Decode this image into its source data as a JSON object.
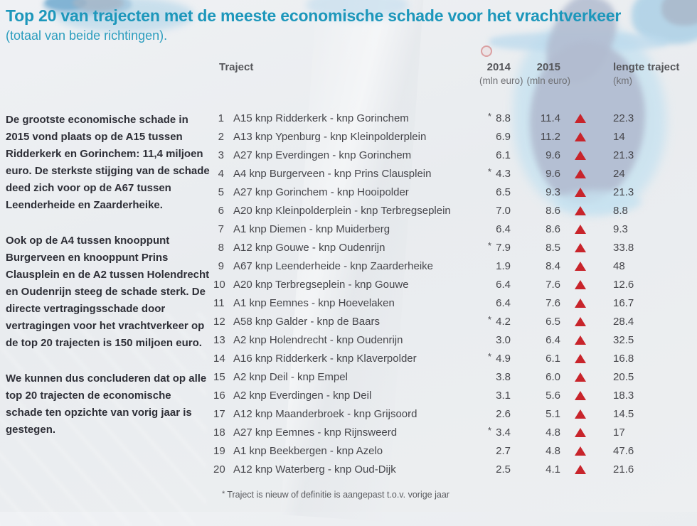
{
  "page": {
    "title": "Top 20 van trajecten met de meeste economische schade voor het vrachtverkeer",
    "subtitle": "(totaal van beide richtingen)."
  },
  "colors": {
    "title_accent": "#1d97bb",
    "body_text": "#2e2f37",
    "table_text": "#47474c",
    "trend_up": "#c8242b",
    "map_land": "#b2bcd0",
    "map_water": "#c7e2f0"
  },
  "sidebar": {
    "paragraphs": [
      "De grootste economische schade in 2015 vond plaats op de A15 tussen Ridderkerk en Gorinchem: 11,4 miljoen euro. De sterkste stijging van de schade deed zich voor op de A67 tussen Leenderheide en Zaarderheike.",
      "Ook op de A4 tussen knooppunt Burgerveen en knooppunt Prins Clausplein en de A2 tussen Holendrecht en Oudenrijn steeg de schade sterk. De directe vertragingsschade door vertragingen voor het vrachtverkeer op de top 20 trajecten is 150 miljoen euro.",
      "We kunnen dus concluderen dat op alle top 20 trajecten de economische schade ten opzichte van vorig jaar is gestegen."
    ]
  },
  "table": {
    "headers": {
      "traject": "Traject",
      "y2014": "2014",
      "y2014_unit": "(mln euro)",
      "y2015": "2015",
      "y2015_unit": "(mln euro)",
      "length": "lengte traject",
      "length_unit": "(km)"
    },
    "rows": [
      {
        "rank": "1",
        "traject": "A15 knp Ridderkerk - knp Gorinchem",
        "v2014": "8.8",
        "new_or_changed": true,
        "v2015": "11.4",
        "trend": "up",
        "length": "22.3"
      },
      {
        "rank": "2",
        "traject": "A13 knp Ypenburg - knp Kleinpolderplein",
        "v2014": "6.9",
        "new_or_changed": false,
        "v2015": "11.2",
        "trend": "up",
        "length": "14"
      },
      {
        "rank": "3",
        "traject": "A27 knp Everdingen - knp Gorinchem",
        "v2014": "6.1",
        "new_or_changed": false,
        "v2015": "9.6",
        "trend": "up",
        "length": "21.3"
      },
      {
        "rank": "4",
        "traject": "A4 knp Burgerveen - knp Prins Clausplein",
        "v2014": "4.3",
        "new_or_changed": true,
        "v2015": "9.6",
        "trend": "up",
        "length": "24"
      },
      {
        "rank": "5",
        "traject": "A27 knp Gorinchem - knp Hooipolder",
        "v2014": "6.5",
        "new_or_changed": false,
        "v2015": "9.3",
        "trend": "up",
        "length": "21.3"
      },
      {
        "rank": "6",
        "traject": "A20 knp Kleinpolderplein - knp Terbregseplein",
        "v2014": "7.0",
        "new_or_changed": false,
        "v2015": "8.6",
        "trend": "up",
        "length": "8.8"
      },
      {
        "rank": "7",
        "traject": "A1 knp Diemen - knp Muiderberg",
        "v2014": "6.4",
        "new_or_changed": false,
        "v2015": "8.6",
        "trend": "up",
        "length": "9.3"
      },
      {
        "rank": "8",
        "traject": "A12 knp Gouwe - knp Oudenrijn",
        "v2014": "7.9",
        "new_or_changed": true,
        "v2015": "8.5",
        "trend": "up",
        "length": "33.8"
      },
      {
        "rank": "9",
        "traject": "A67 knp Leenderheide - knp Zaarderheike",
        "v2014": "1.9",
        "new_or_changed": false,
        "v2015": "8.4",
        "trend": "up",
        "length": "48"
      },
      {
        "rank": "10",
        "traject": "A20 knp Terbregseplein - knp Gouwe",
        "v2014": "6.4",
        "new_or_changed": false,
        "v2015": "7.6",
        "trend": "up",
        "length": "12.6"
      },
      {
        "rank": "11",
        "traject": "A1 knp Eemnes - knp Hoevelaken",
        "v2014": "6.4",
        "new_or_changed": false,
        "v2015": "7.6",
        "trend": "up",
        "length": "16.7"
      },
      {
        "rank": "12",
        "traject": "A58 knp Galder - knp de Baars",
        "v2014": "4.2",
        "new_or_changed": true,
        "v2015": "6.5",
        "trend": "up",
        "length": "28.4"
      },
      {
        "rank": "13",
        "traject": "A2 knp Holendrecht - knp Oudenrijn",
        "v2014": "3.0",
        "new_or_changed": false,
        "v2015": "6.4",
        "trend": "up",
        "length": "32.5"
      },
      {
        "rank": "14",
        "traject": "A16 knp Ridderkerk - knp Klaverpolder",
        "v2014": "4.9",
        "new_or_changed": true,
        "v2015": "6.1",
        "trend": "up",
        "length": "16.8"
      },
      {
        "rank": "15",
        "traject": "A2 knp Deil - knp Empel",
        "v2014": "3.8",
        "new_or_changed": false,
        "v2015": "6.0",
        "trend": "up",
        "length": "20.5"
      },
      {
        "rank": "16",
        "traject": "A2 knp Everdingen - knp Deil",
        "v2014": "3.1",
        "new_or_changed": false,
        "v2015": "5.6",
        "trend": "up",
        "length": "18.3"
      },
      {
        "rank": "17",
        "traject": "A12 knp Maanderbroek - knp Grijsoord",
        "v2014": "2.6",
        "new_or_changed": false,
        "v2015": "5.1",
        "trend": "up",
        "length": "14.5"
      },
      {
        "rank": "18",
        "traject": "A27 knp Eemnes - knp Rijnsweerd",
        "v2014": "3.4",
        "new_or_changed": true,
        "v2015": "4.8",
        "trend": "up",
        "length": "17"
      },
      {
        "rank": "19",
        "traject": "A1 knp Beekbergen - knp Azelo",
        "v2014": "2.7",
        "new_or_changed": false,
        "v2015": "4.8",
        "trend": "up",
        "length": "47.6"
      },
      {
        "rank": "20",
        "traject": "A12 knp Waterberg - knp Oud-Dijk",
        "v2014": "2.5",
        "new_or_changed": false,
        "v2015": "4.1",
        "trend": "up",
        "length": "21.6"
      }
    ],
    "footnote_marker": "*",
    "footnote_text": "Traject is nieuw of definitie is aangepast t.o.v. vorige jaar"
  }
}
